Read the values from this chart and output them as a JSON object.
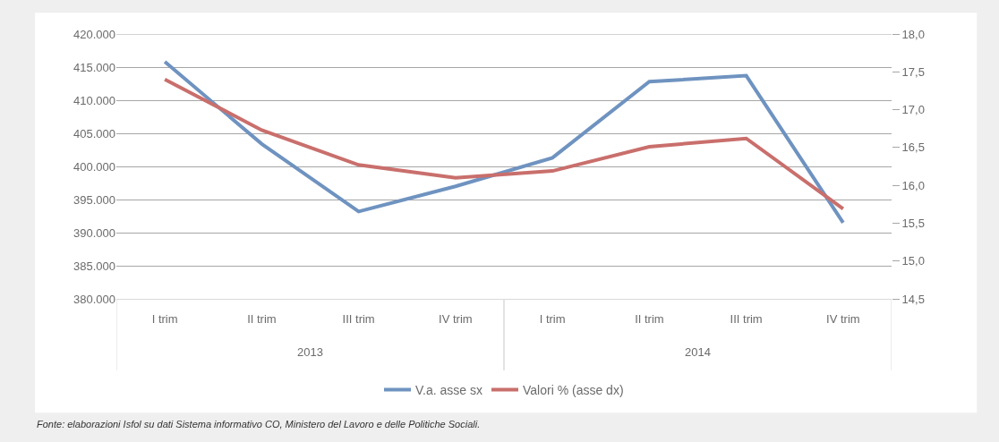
{
  "chart_data": {
    "type": "line",
    "categories": [
      "I trim",
      "II trim",
      "III trim",
      "IV trim",
      "I trim",
      "II trim",
      "III trim",
      "IV trim"
    ],
    "series": [
      {
        "name": "V.a. asse sx",
        "color": "#6f93c0",
        "values": [
          415800,
          403400,
          393200,
          397000,
          401300,
          412800,
          413700,
          391500
        ]
      },
      {
        "name": "Valori % (asse dx)",
        "color": "#c96f6c",
        "axis": "y2",
        "values": [
          17.4,
          16.73,
          16.27,
          16.1,
          16.19,
          16.51,
          16.62,
          15.69
        ]
      }
    ],
    "ylim": [
      380000,
      420000
    ],
    "yticks": [
      {
        "value": 380000,
        "label": "380.000"
      },
      {
        "value": 385000,
        "label": "385.000"
      },
      {
        "value": 390000,
        "label": "390.000"
      },
      {
        "value": 395000,
        "label": "395.000"
      },
      {
        "value": 400000,
        "label": "400.000"
      },
      {
        "value": 405000,
        "label": "405.000"
      },
      {
        "value": 410000,
        "label": "410.000"
      },
      {
        "value": 415000,
        "label": "415.000"
      },
      {
        "value": 420000,
        "label": "420.000"
      }
    ],
    "y2lim": [
      14.5,
      18.0
    ],
    "y2ticks": [
      {
        "value": 14.5,
        "label": "14,5"
      },
      {
        "value": 15.0,
        "label": "15,0"
      },
      {
        "value": 15.5,
        "label": "15,5"
      },
      {
        "value": 16.0,
        "label": "16,0"
      },
      {
        "value": 16.5,
        "label": "16,5"
      },
      {
        "value": 17.0,
        "label": "17,0"
      },
      {
        "value": 17.5,
        "label": "17,5"
      },
      {
        "value": 18.0,
        "label": "18,0"
      }
    ],
    "grid": "y",
    "legend": "bottom",
    "marker": "none",
    "line_style": "solid",
    "annotations": [
      "2013",
      "2014",
      "Fonte: elaborazioni Isfol su dati Sistema informativo CO, Ministero del Lavoro e delle Politiche Sociali."
    ]
  }
}
